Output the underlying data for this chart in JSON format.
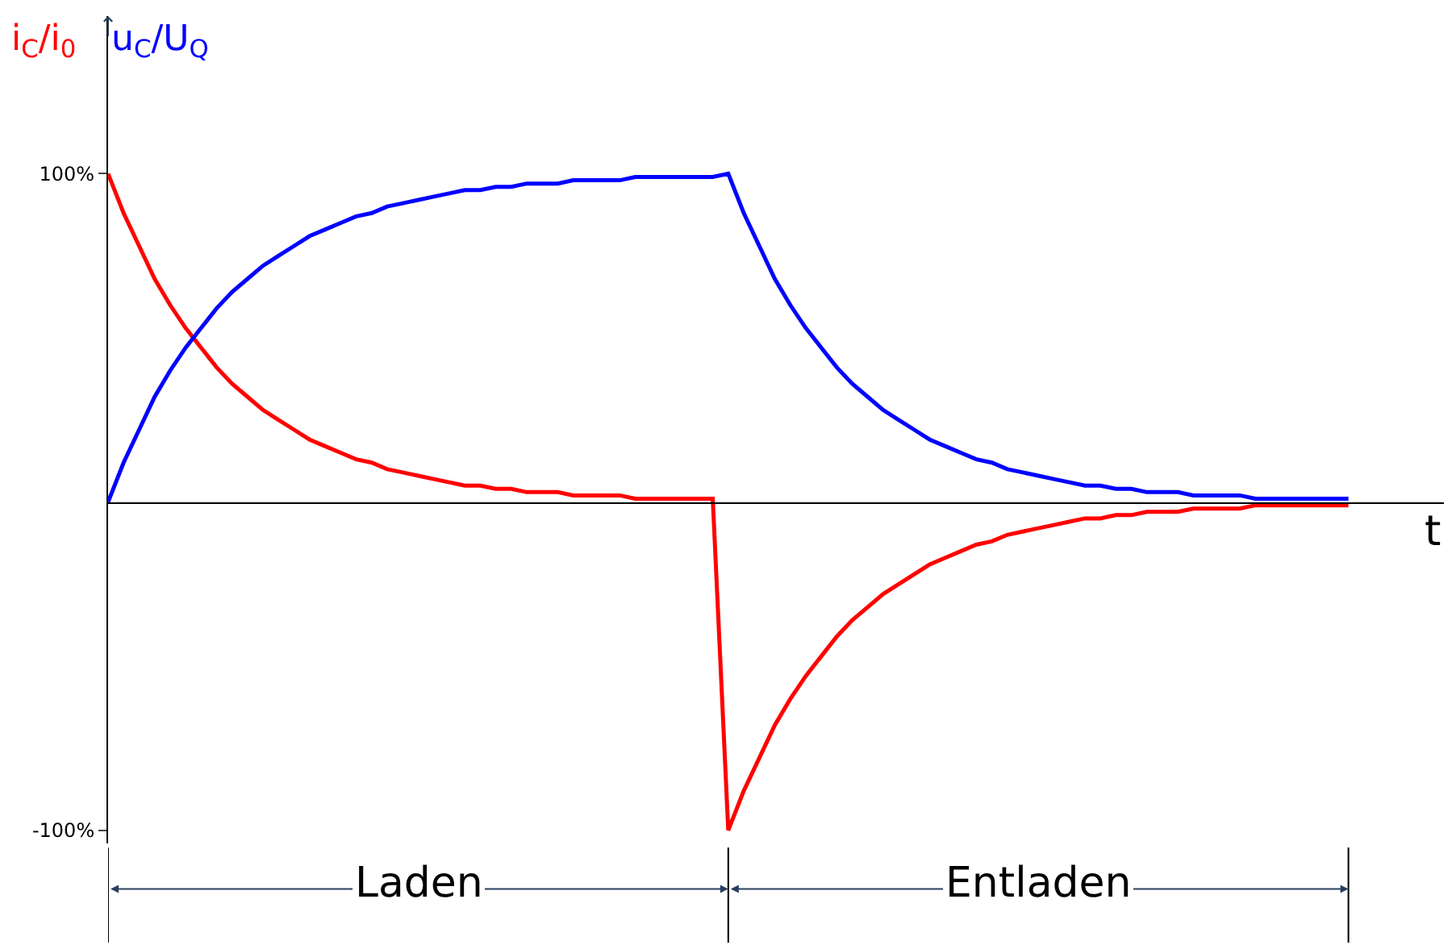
{
  "chart_data": {
    "type": "line",
    "xlabel": "t",
    "categories": [
      null,
      null,
      null,
      null,
      null,
      null,
      null,
      null,
      null,
      null,
      null,
      null,
      null,
      null,
      null,
      null,
      null,
      null,
      null,
      null,
      null,
      null,
      null,
      null,
      null,
      null,
      null,
      null,
      null,
      null,
      null,
      null,
      null,
      null,
      null,
      null,
      null,
      null,
      null,
      null,
      null,
      null,
      null,
      null,
      null,
      null,
      null,
      null,
      null,
      null,
      null,
      null,
      null,
      null,
      null,
      null,
      null,
      null,
      null,
      null,
      null,
      null,
      null,
      null,
      null,
      null,
      null,
      null,
      null,
      null,
      null,
      null,
      null,
      null,
      null,
      null,
      null,
      null,
      null,
      null,
      null
    ],
    "series": [
      {
        "name": "i$_{C}$/i$_{0}$",
        "color": "#ff0000",
        "values": [
          100,
          88,
          78,
          68,
          60,
          53,
          47,
          41,
          36,
          32,
          28,
          25,
          22,
          19,
          17,
          15,
          13,
          12,
          10,
          9,
          8,
          7,
          6,
          5,
          5,
          4,
          4,
          3,
          3,
          3,
          2,
          2,
          2,
          2,
          1,
          1,
          1,
          1,
          1,
          1,
          -100,
          -88,
          -78,
          -68,
          -60,
          -53,
          -47,
          -41,
          -36,
          -32,
          -28,
          -25,
          -22,
          -19,
          -17,
          -15,
          -13,
          -12,
          -10,
          -9,
          -8,
          -7,
          -6,
          -5,
          -5,
          -4,
          -4,
          -3,
          -3,
          -3,
          -2,
          -2,
          -2,
          -2,
          -1,
          -1,
          -1,
          -1,
          -1,
          -1,
          -1
        ]
      },
      {
        "name": "u$_{C}$/U$_{Q}$",
        "color": "#0000ff",
        "values": [
          0,
          12,
          22,
          32,
          40,
          47,
          53,
          59,
          64,
          68,
          72,
          75,
          78,
          81,
          83,
          85,
          87,
          88,
          90,
          91,
          92,
          93,
          94,
          95,
          95,
          96,
          96,
          97,
          97,
          97,
          98,
          98,
          98,
          98,
          99,
          99,
          99,
          99,
          99,
          99,
          100,
          88,
          78,
          68,
          60,
          53,
          47,
          41,
          36,
          32,
          28,
          25,
          22,
          19,
          17,
          15,
          13,
          12,
          10,
          9,
          8,
          7,
          6,
          5,
          5,
          4,
          4,
          3,
          3,
          3,
          2,
          2,
          2,
          2,
          1,
          1,
          1,
          1,
          1,
          1,
          1
        ]
      }
    ],
    "ylim": [
      -104,
      148
    ],
    "yticks": [
      {
        "value": 100,
        "label": "100%"
      },
      {
        "value": -100,
        "label": "-100%"
      }
    ],
    "annotations": [
      "Laden",
      "Entladen"
    ],
    "tick_labels": "y",
    "legend": false,
    "marker": "none",
    "line_style": "solid"
  }
}
